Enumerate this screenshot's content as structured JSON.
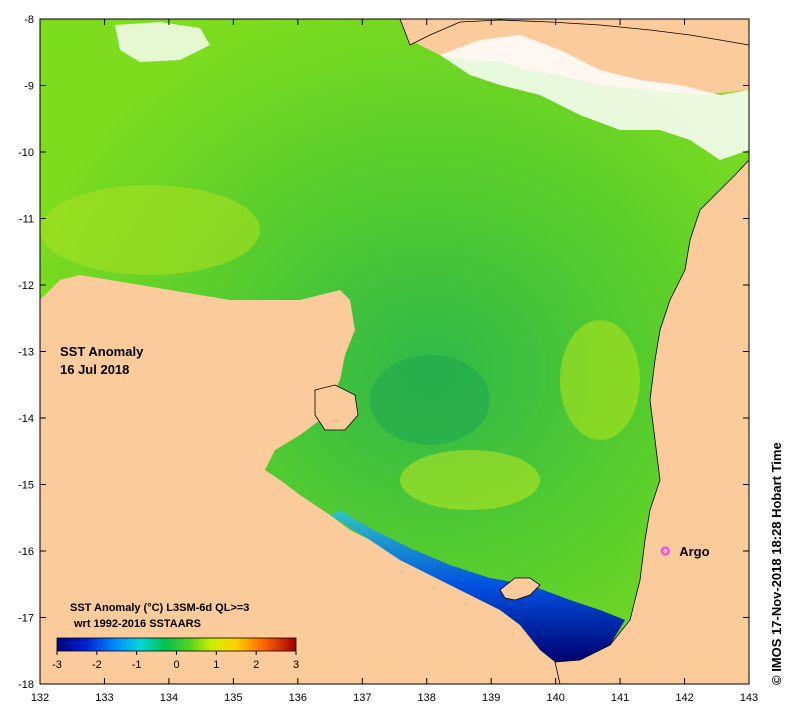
{
  "map": {
    "title": "SST Anomaly",
    "date": "16 Jul 2018",
    "legend_title": "SST Anomaly (°C) L3SM-6d QL>=3",
    "legend_subtitle": "wrt 1992-2016 SSTAARS",
    "colorbar_ticks": [
      "-3",
      "-2",
      "-1",
      "0",
      "1",
      "2",
      "3"
    ],
    "colorbar_range": [
      -3,
      3
    ],
    "x_ticks": [
      "132",
      "133",
      "134",
      "135",
      "136",
      "137",
      "138",
      "139",
      "140",
      "141",
      "142",
      "143"
    ],
    "y_ticks": [
      "-8",
      "-9",
      "-10",
      "-11",
      "-12",
      "-13",
      "-14",
      "-15",
      "-16",
      "-17",
      "-18"
    ],
    "lon_range": [
      132,
      143
    ],
    "lat_range": [
      -18,
      -8
    ],
    "marker_label": "Argo",
    "marker_lon": 141.7,
    "marker_lat": -16.0,
    "credit": "© IMOS 17-Nov-2018 18:28 Hobart Time",
    "colors": {
      "land": "#fbcb9c",
      "marker": "#ff33ff",
      "coast": "#000000"
    }
  }
}
